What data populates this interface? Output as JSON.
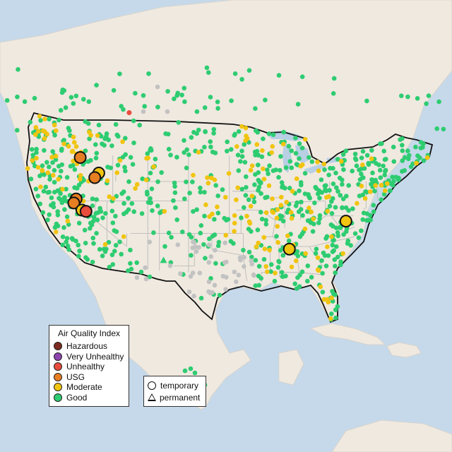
{
  "legend": {
    "title": "Air Quality Index",
    "items": [
      {
        "label": "Hazardous",
        "color": "#7e2a1f"
      },
      {
        "label": "Very Unhealthy",
        "color": "#8e44ad"
      },
      {
        "label": "Unhealthy",
        "color": "#e74c3c"
      },
      {
        "label": "USG",
        "color": "#e67e22"
      },
      {
        "label": "Moderate",
        "color": "#f1c40f"
      },
      {
        "label": "Good",
        "color": "#2ecc71"
      }
    ]
  },
  "type_legend": {
    "items": [
      {
        "label": "temporary",
        "shape": "circle"
      },
      {
        "label": "permanent",
        "shape": "triangle"
      }
    ]
  },
  "colors": {
    "ocean": "#c6d9ea",
    "land": "#efe9e0",
    "lake": "#b8cfe4",
    "state_border": "#b5b5b5",
    "country_border": "#111111",
    "no_data": "#c2c2c2"
  },
  "stations": {
    "large_temporary": [
      {
        "lon": -122.6,
        "lat": 48.7,
        "aqi": "USG"
      },
      {
        "lon": -119.4,
        "lat": 46.3,
        "aqi": "Moderate"
      },
      {
        "lon": -120.1,
        "lat": 45.6,
        "aqi": "USG"
      },
      {
        "lon": -123.3,
        "lat": 42.3,
        "aqi": "USG"
      },
      {
        "lon": -123.7,
        "lat": 41.7,
        "aqi": "USG"
      },
      {
        "lon": -122.3,
        "lat": 40.6,
        "aqi": "Moderate"
      },
      {
        "lon": -121.6,
        "lat": 40.4,
        "aqi": "Unhealthy"
      },
      {
        "lon": -86.7,
        "lat": 34.6,
        "aqi": "Moderate"
      },
      {
        "lon": -77.0,
        "lat": 38.9,
        "aqi": "Moderate"
      }
    ],
    "small_unhealthy": [
      {
        "lon": -114.2,
        "lat": 55.6
      }
    ],
    "permanent_good": [
      {
        "lon": -108.3,
        "lat": 32.9
      }
    ]
  }
}
